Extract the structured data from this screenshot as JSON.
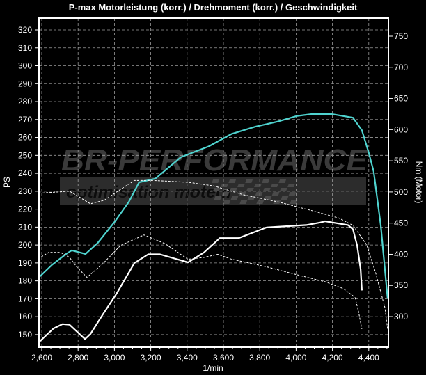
{
  "chart_data": {
    "type": "line",
    "title": "P-max Motorleistung (korr.) / Drehmoment (korr.) / Geschwindigkeit",
    "xlabel": "1/min",
    "ylabel_left": "PS",
    "ylabel_right": "Nm (Motor)",
    "xlim": [
      2585,
      4510
    ],
    "ylim_left": [
      143,
      327
    ],
    "ylim_right": [
      260,
      778
    ],
    "x_ticks": [
      2600,
      2800,
      3000,
      3200,
      3400,
      3600,
      3800,
      4000,
      4200,
      4400
    ],
    "x_tick_labels": [
      "2,600",
      "2,800",
      "3,000",
      "3,200",
      "3,400",
      "3,600",
      "3,800",
      "4,000",
      "4,200",
      "4,400"
    ],
    "y_left_ticks": [
      150,
      160,
      170,
      180,
      190,
      200,
      210,
      220,
      230,
      240,
      250,
      260,
      270,
      280,
      290,
      300,
      310,
      320
    ],
    "y_right_ticks": [
      300,
      350,
      400,
      450,
      500,
      550,
      600,
      650,
      700,
      750
    ],
    "grid": true,
    "colors": {
      "background": "#000000",
      "power_tuned": "#4fd3cf",
      "torque_tuned": "#ffffff",
      "stock": "#ffffff",
      "grid": "#9a9a9a",
      "watermark": "#3a3a3a"
    },
    "series": [
      {
        "axis": "left",
        "style": "solid",
        "color": "#4fd3cf",
        "points": [
          [
            2585,
            182
          ],
          [
            2657,
            189
          ],
          [
            2734,
            195
          ],
          [
            2765,
            197
          ],
          [
            2841,
            195
          ],
          [
            2907,
            201
          ],
          [
            3002,
            213
          ],
          [
            3079,
            224
          ],
          [
            3136,
            235
          ],
          [
            3225,
            237
          ],
          [
            3366,
            249
          ],
          [
            3519,
            255
          ],
          [
            3646,
            262
          ],
          [
            3776,
            266
          ],
          [
            3903,
            269
          ],
          [
            4006,
            272
          ],
          [
            4083,
            273
          ],
          [
            4198,
            273
          ],
          [
            4313,
            271
          ],
          [
            4362,
            264
          ],
          [
            4401,
            251
          ],
          [
            4427,
            241
          ],
          [
            4466,
            211
          ],
          [
            4504,
            170
          ]
        ]
      },
      {
        "axis": "right",
        "style": "solid",
        "color": "#ffffff",
        "points": [
          [
            2581,
            258
          ],
          [
            2665,
            281
          ],
          [
            2715,
            288
          ],
          [
            2753,
            287
          ],
          [
            2838,
            264
          ],
          [
            2868,
            272
          ],
          [
            2933,
            302
          ],
          [
            3010,
            336
          ],
          [
            3110,
            386
          ],
          [
            3186,
            400
          ],
          [
            3251,
            400
          ],
          [
            3405,
            387
          ],
          [
            3493,
            403
          ],
          [
            3580,
            426
          ],
          [
            3684,
            426
          ],
          [
            3837,
            443
          ],
          [
            4056,
            447
          ],
          [
            4133,
            451
          ],
          [
            4159,
            453
          ],
          [
            4286,
            447
          ],
          [
            4313,
            440
          ],
          [
            4336,
            414
          ],
          [
            4355,
            376
          ],
          [
            4362,
            342
          ]
        ]
      },
      {
        "axis": "left",
        "style": "dashed",
        "color": "#ffffff",
        "points": [
          [
            2585,
            229
          ],
          [
            2600,
            229
          ],
          [
            2753,
            230
          ],
          [
            2803,
            227
          ],
          [
            2868,
            223
          ],
          [
            2945,
            225
          ],
          [
            3033,
            231
          ],
          [
            3110,
            236
          ],
          [
            3213,
            236
          ],
          [
            3405,
            235
          ],
          [
            3546,
            233
          ],
          [
            3711,
            228
          ],
          [
            3903,
            224
          ],
          [
            4094,
            219
          ],
          [
            4236,
            215
          ],
          [
            4313,
            211
          ],
          [
            4389,
            200
          ],
          [
            4439,
            184
          ],
          [
            4489,
            165
          ],
          [
            4504,
            153
          ]
        ]
      },
      {
        "axis": "right",
        "style": "dashed",
        "color": "#ffffff",
        "points": [
          [
            2581,
            393
          ],
          [
            2638,
            403
          ],
          [
            2703,
            403
          ],
          [
            2753,
            395
          ],
          [
            2792,
            380
          ],
          [
            2849,
            363
          ],
          [
            2933,
            384
          ],
          [
            3033,
            414
          ],
          [
            3163,
            431
          ],
          [
            3278,
            417
          ],
          [
            3405,
            392
          ],
          [
            3493,
            395
          ],
          [
            3569,
            400
          ],
          [
            3646,
            392
          ],
          [
            3837,
            380
          ],
          [
            4006,
            367
          ],
          [
            4159,
            356
          ],
          [
            4259,
            345
          ],
          [
            4324,
            331
          ],
          [
            4343,
            309
          ],
          [
            4362,
            280
          ]
        ]
      }
    ]
  },
  "watermark": {
    "brand": "BR-PERFORMANCE",
    "tagline": "optimisation moteur"
  }
}
